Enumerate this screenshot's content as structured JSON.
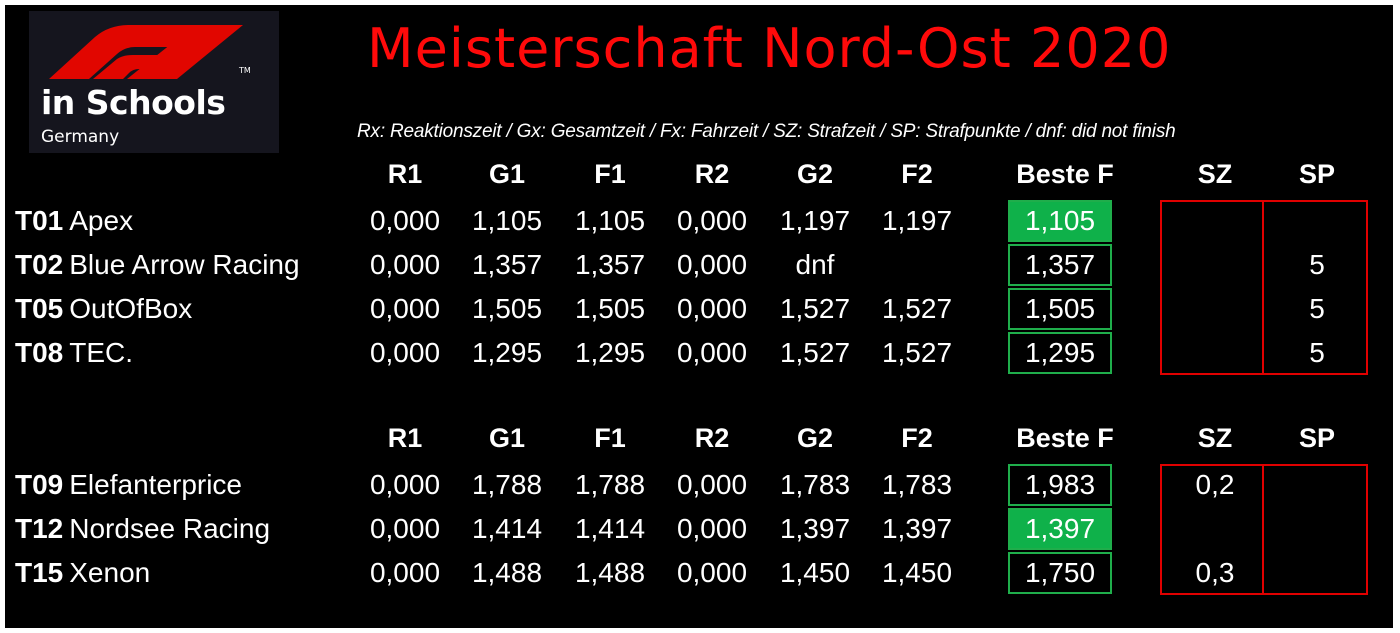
{
  "logo": {
    "line1": "in Schools",
    "line2": "Germany",
    "tm": "TM",
    "red": "#e10600"
  },
  "title": "Meisterschaft Nord-Ost 2020",
  "legend": "Rx: Reaktionszeit / Gx: Gesamtzeit / Fx: Fahrzeit / SZ: Strafzeit / SP: Strafpunkte / dnf: did not finish",
  "columns": [
    "R1",
    "G1",
    "F1",
    "R2",
    "G2",
    "F2",
    "Beste F",
    "SZ",
    "SP"
  ],
  "groups": [
    {
      "rows": [
        {
          "id": "T01",
          "name": "Apex",
          "r1": "0,000",
          "g1": "1,105",
          "f1": "1,105",
          "r2": "0,000",
          "g2": "1,197",
          "f2": "1,197",
          "best": "1,105",
          "best_highlight": true,
          "sz": "",
          "sp": ""
        },
        {
          "id": "T02",
          "name": "Blue Arrow Racing",
          "r1": "0,000",
          "g1": "1,357",
          "f1": "1,357",
          "r2": "0,000",
          "g2": "dnf",
          "f2": "",
          "best": "1,357",
          "best_highlight": false,
          "sz": "",
          "sp": "5"
        },
        {
          "id": "T05",
          "name": "OutOfBox",
          "r1": "0,000",
          "g1": "1,505",
          "f1": "1,505",
          "r2": "0,000",
          "g2": "1,527",
          "f2": "1,527",
          "best": "1,505",
          "best_highlight": false,
          "sz": "",
          "sp": "5"
        },
        {
          "id": "T08",
          "name": "TEC.",
          "r1": "0,000",
          "g1": "1,295",
          "f1": "1,295",
          "r2": "0,000",
          "g2": "1,527",
          "f2": "1,527",
          "best": "1,295",
          "best_highlight": false,
          "sz": "",
          "sp": "5"
        }
      ]
    },
    {
      "rows": [
        {
          "id": "T09",
          "name": "Elefanterprice",
          "r1": "0,000",
          "g1": "1,788",
          "f1": "1,788",
          "r2": "0,000",
          "g2": "1,783",
          "f2": "1,783",
          "best": "1,983",
          "best_highlight": false,
          "sz": "0,2",
          "sp": ""
        },
        {
          "id": "T12",
          "name": "Nordsee Racing",
          "r1": "0,000",
          "g1": "1,414",
          "f1": "1,414",
          "r2": "0,000",
          "g2": "1,397",
          "f2": "1,397",
          "best": "1,397",
          "best_highlight": true,
          "sz": "",
          "sp": ""
        },
        {
          "id": "T15",
          "name": "Xenon",
          "r1": "0,000",
          "g1": "1,488",
          "f1": "1,488",
          "r2": "0,000",
          "g2": "1,450",
          "f2": "1,450",
          "best": "1,750",
          "best_highlight": false,
          "sz": "0,3",
          "sp": ""
        }
      ]
    }
  ],
  "colors": {
    "title_red": "#ff0a0a",
    "best_green": "#0fb14a",
    "penalty_red": "#e00000",
    "background": "#000000"
  }
}
